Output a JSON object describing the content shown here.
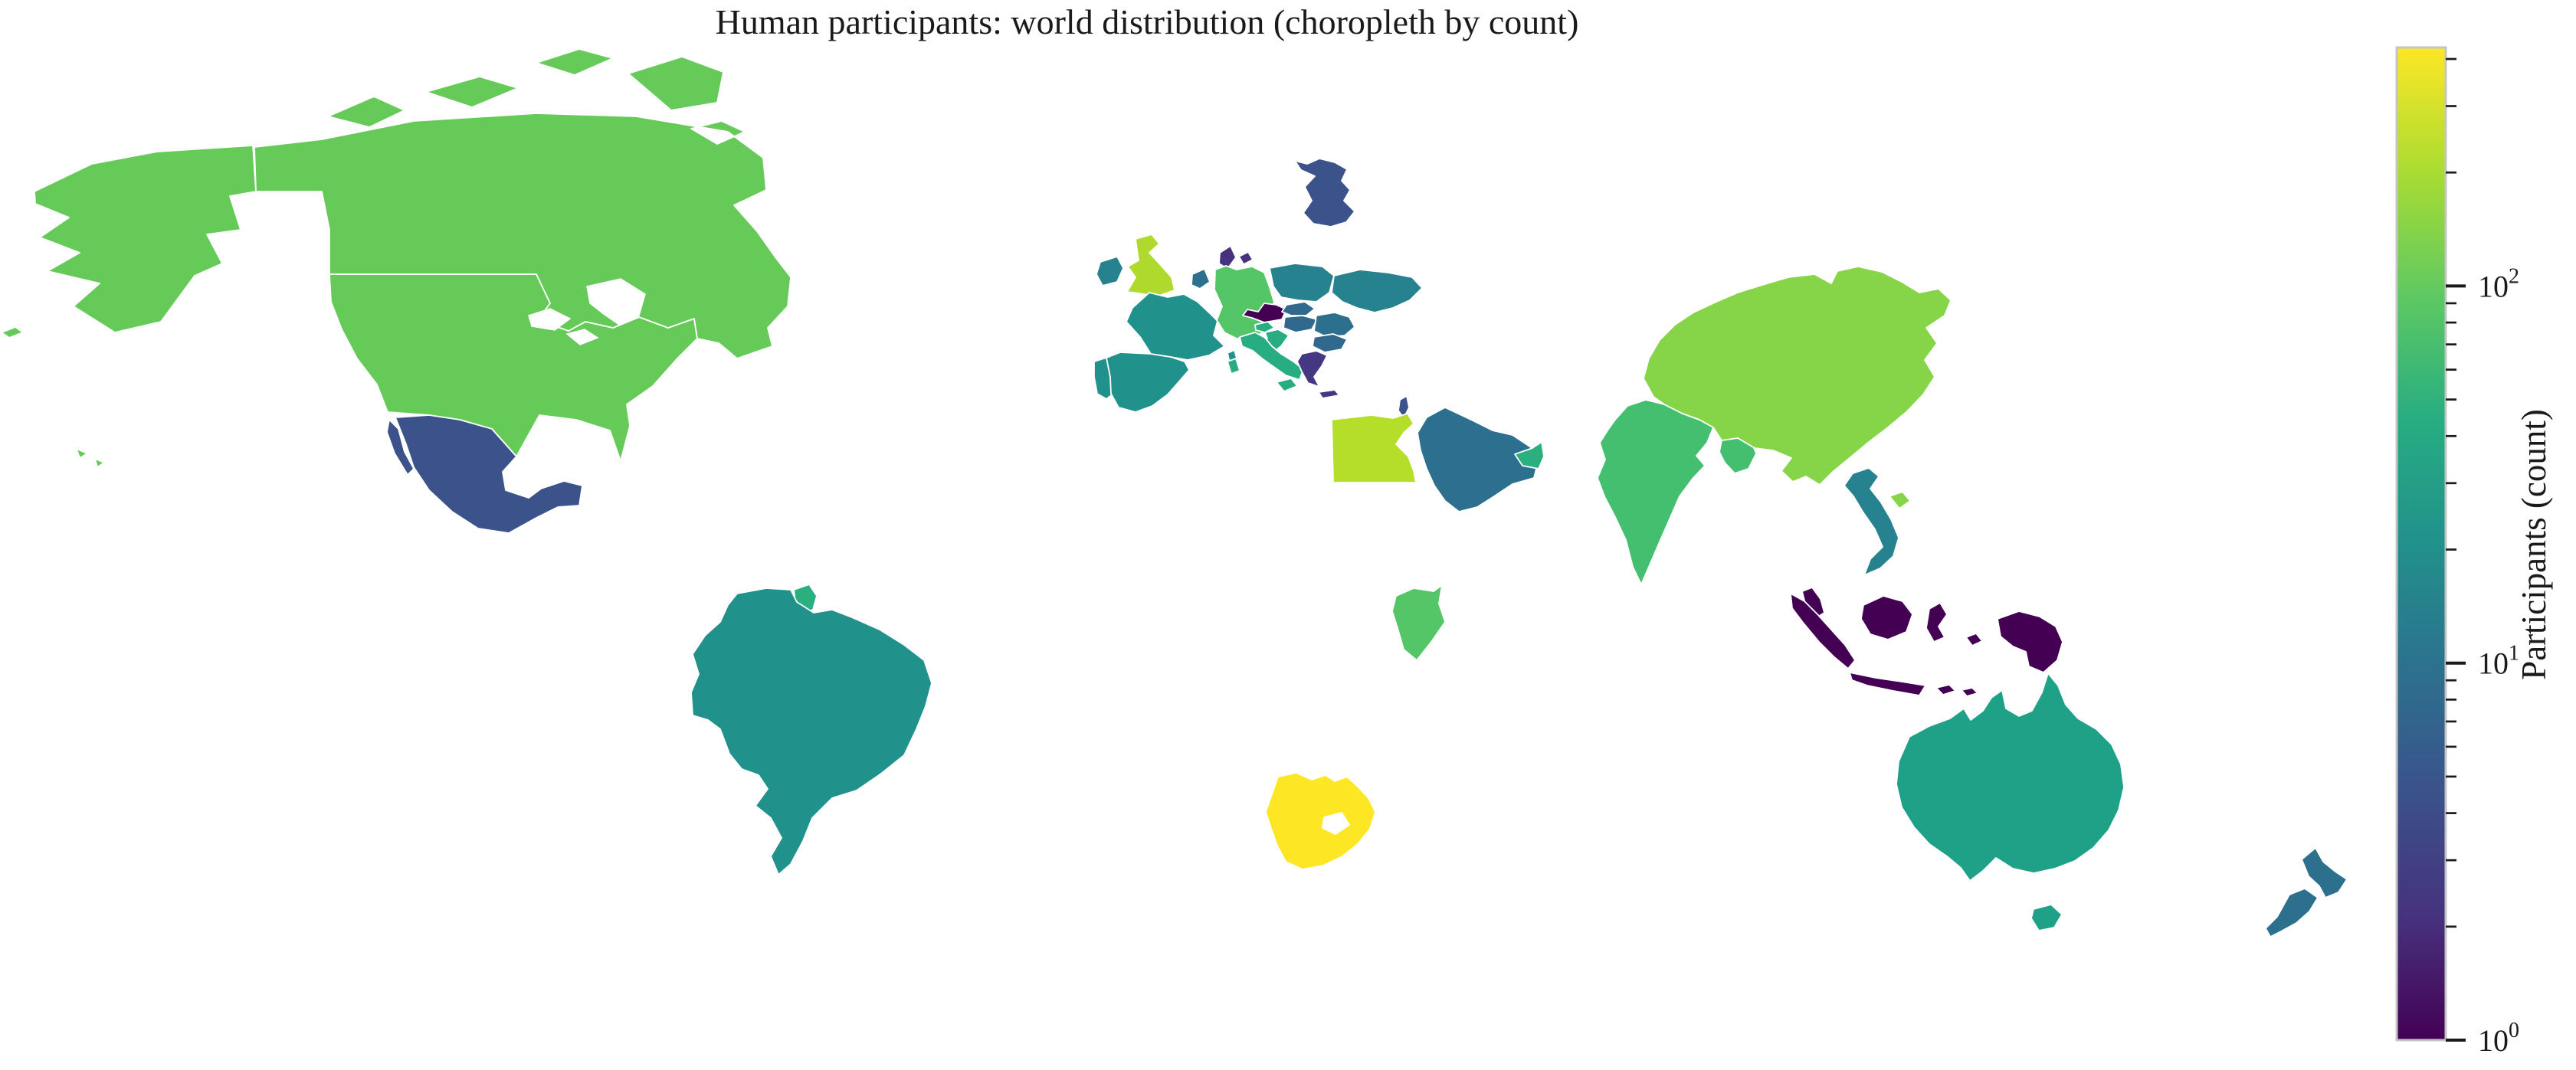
{
  "title": "Human participants: world distribution (choropleth by count)",
  "colorbar": {
    "label": "Participants (count)",
    "scale": "log",
    "colormap": "viridis",
    "vmin": 1,
    "vmax": 430,
    "ticks": [
      {
        "base": "10",
        "exp": "0",
        "value": 1
      },
      {
        "base": "10",
        "exp": "1",
        "value": 10
      },
      {
        "base": "10",
        "exp": "2",
        "value": 100
      }
    ],
    "minor_tick_values": [
      2,
      3,
      4,
      5,
      6,
      7,
      8,
      9,
      20,
      30,
      40,
      50,
      60,
      70,
      80,
      90,
      200,
      300,
      400
    ],
    "gradient": [
      "#440154",
      "#46327e",
      "#3b528b",
      "#2c718e",
      "#21918c",
      "#27ad81",
      "#5ec962",
      "#aadc32",
      "#fde725"
    ]
  },
  "chart_data": {
    "type": "choropleth",
    "title": "Human participants: world distribution (choropleth by count)",
    "colorbar_label": "Participants (count)",
    "color_scale": {
      "name": "viridis",
      "type": "log10",
      "vmin": 1,
      "vmax": 430
    },
    "legend_position": "right",
    "countries": [
      {
        "id": "usa",
        "name": "United States",
        "value": 110,
        "color": "#66ca59"
      },
      {
        "id": "canada",
        "name": "Canada",
        "value": 110,
        "color": "#66ca59"
      },
      {
        "id": "mexico",
        "name": "Mexico",
        "value": 5,
        "color": "#3b528b"
      },
      {
        "id": "guyana",
        "name": "Guyana",
        "value": 40,
        "color": "#2ab07f"
      },
      {
        "id": "brazil",
        "name": "Brazil",
        "value": 22,
        "color": "#21918c"
      },
      {
        "id": "ireland",
        "name": "Ireland",
        "value": 16,
        "color": "#26828e"
      },
      {
        "id": "united_kingdom",
        "name": "United Kingdom",
        "value": 250,
        "color": "#b0d92d"
      },
      {
        "id": "portugal",
        "name": "Portugal",
        "value": 22,
        "color": "#21918c"
      },
      {
        "id": "spain",
        "name": "Spain",
        "value": 22,
        "color": "#21918c"
      },
      {
        "id": "france",
        "name": "France",
        "value": 22,
        "color": "#21918c"
      },
      {
        "id": "netherlands",
        "name": "Netherlands",
        "value": 11,
        "color": "#2d708e"
      },
      {
        "id": "denmark",
        "name": "Denmark",
        "value": 2,
        "color": "#46327e"
      },
      {
        "id": "germany",
        "name": "Germany",
        "value": 100,
        "color": "#55c667"
      },
      {
        "id": "poland",
        "name": "Poland",
        "value": 16,
        "color": "#26828e"
      },
      {
        "id": "ukraine",
        "name": "Ukraine",
        "value": 16,
        "color": "#26828e"
      },
      {
        "id": "austria",
        "name": "Austria",
        "value": 1,
        "color": "#440154"
      },
      {
        "id": "slovakia",
        "name": "Slovakia",
        "value": 7,
        "color": "#31688e"
      },
      {
        "id": "hungary",
        "name": "Hungary",
        "value": 7,
        "color": "#31688e"
      },
      {
        "id": "slovenia",
        "name": "Slovenia",
        "value": 45,
        "color": "#27ad81"
      },
      {
        "id": "croatia",
        "name": "Croatia",
        "value": 45,
        "color": "#27ad81"
      },
      {
        "id": "italy",
        "name": "Italy",
        "value": 45,
        "color": "#27ad81"
      },
      {
        "id": "romania",
        "name": "Romania",
        "value": 11,
        "color": "#2d708e"
      },
      {
        "id": "bulgaria",
        "name": "Bulgaria",
        "value": 7,
        "color": "#31688e"
      },
      {
        "id": "greece",
        "name": "Greece",
        "value": 3,
        "color": "#453781"
      },
      {
        "id": "finland",
        "name": "Finland",
        "value": 5,
        "color": "#3b528b"
      },
      {
        "id": "israel",
        "name": "Israel",
        "value": 5,
        "color": "#3b528b"
      },
      {
        "id": "egypt",
        "name": "Egypt",
        "value": 250,
        "color": "#b5de2b"
      },
      {
        "id": "saudi_arabia",
        "name": "Saudi Arabia",
        "value": 10,
        "color": "#2c6f8e"
      },
      {
        "id": "uae",
        "name": "United Arab Emirates",
        "value": 40,
        "color": "#2ab07f"
      },
      {
        "id": "kenya",
        "name": "Kenya",
        "value": 100,
        "color": "#55c667"
      },
      {
        "id": "south_africa",
        "name": "South Africa",
        "value": 430,
        "color": "#fde725"
      },
      {
        "id": "india",
        "name": "India",
        "value": 75,
        "color": "#44bf70"
      },
      {
        "id": "bangladesh",
        "name": "Bangladesh",
        "value": 75,
        "color": "#44bf70"
      },
      {
        "id": "china",
        "name": "China",
        "value": 160,
        "color": "#86d549"
      },
      {
        "id": "vietnam",
        "name": "Vietnam",
        "value": 16,
        "color": "#26828e"
      },
      {
        "id": "malaysia",
        "name": "Malaysia",
        "value": 1,
        "color": "#440154"
      },
      {
        "id": "indonesia",
        "name": "Indonesia",
        "value": 1,
        "color": "#440154"
      },
      {
        "id": "australia",
        "name": "Australia",
        "value": 32,
        "color": "#1fa188"
      },
      {
        "id": "new_zealand",
        "name": "New Zealand",
        "value": 11,
        "color": "#2d708e"
      }
    ]
  }
}
